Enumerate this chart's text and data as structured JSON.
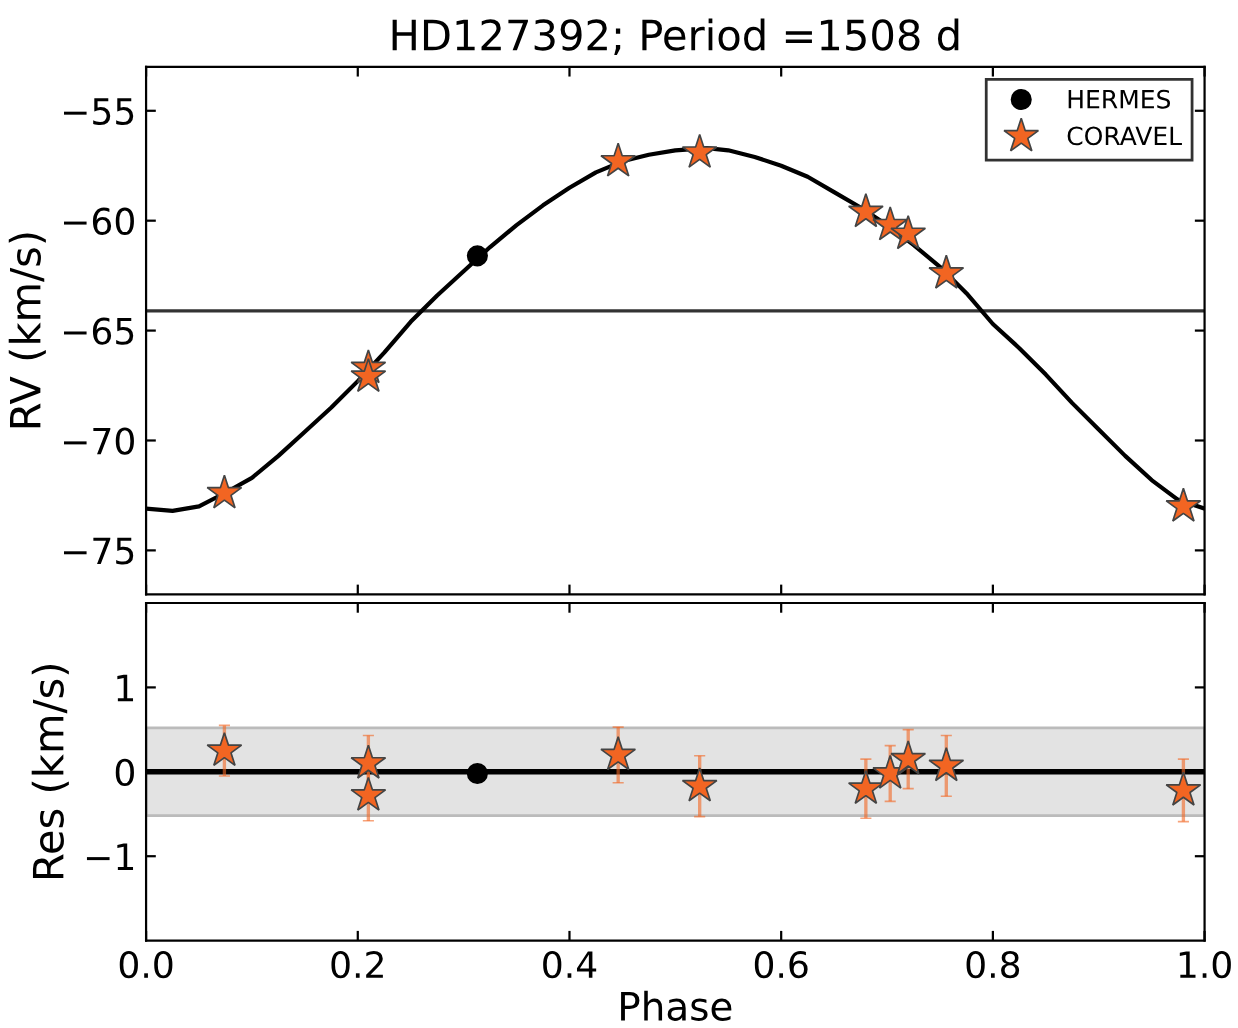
{
  "chart_data": [
    {
      "type": "scatter",
      "title": "HD127392; Period =1508 d",
      "ylabel": "RV (km/s)",
      "xlim": [
        0,
        1
      ],
      "xticks": [
        0,
        0.2,
        0.4,
        0.6,
        0.8,
        1
      ],
      "ylim": [
        -77,
        -53
      ],
      "yticks": [
        -75,
        -70,
        -65,
        -60,
        -55
      ],
      "tick_labels": "y",
      "legend": "top right",
      "grid": false,
      "series": [
        {
          "type": "line",
          "color": "#000000",
          "marker": "none",
          "x": [
            0,
            0.025,
            0.05,
            0.074,
            0.1,
            0.125,
            0.15,
            0.175,
            0.2,
            0.225,
            0.25,
            0.275,
            0.3,
            0.325,
            0.35,
            0.375,
            0.4,
            0.425,
            0.45,
            0.475,
            0.5,
            0.53,
            0.55,
            0.575,
            0.6,
            0.625,
            0.65,
            0.675,
            0.7,
            0.725,
            0.75,
            0.775,
            0.8,
            0.825,
            0.85,
            0.875,
            0.9,
            0.925,
            0.95,
            0.975,
            1.0
          ],
          "values": [
            -73.1,
            -73.2,
            -73.0,
            -72.4,
            -71.7,
            -70.7,
            -69.6,
            -68.5,
            -67.3,
            -66.0,
            -64.6,
            -63.4,
            -62.3,
            -61.2,
            -60.2,
            -59.3,
            -58.5,
            -57.8,
            -57.3,
            -57.0,
            -56.8,
            -56.7,
            -56.8,
            -57.1,
            -57.5,
            -58.0,
            -58.7,
            -59.4,
            -60.2,
            -61.1,
            -62.1,
            -63.3,
            -64.7,
            -65.8,
            -67.0,
            -68.3,
            -69.5,
            -70.7,
            -71.8,
            -72.7,
            -73.1
          ]
        },
        {
          "name": "HERMES",
          "color": "#000000",
          "marker": "circle",
          "x": [
            0.313
          ],
          "values": [
            -61.6
          ]
        },
        {
          "name": "CORAVEL",
          "color": "#f26522",
          "marker": "star",
          "x": [
            0.074,
            0.21,
            0.21,
            0.446,
            0.523,
            0.68,
            0.703,
            0.72,
            0.756,
            0.98
          ],
          "values": [
            -72.4,
            -66.7,
            -67.1,
            -57.3,
            -56.9,
            -59.6,
            -60.2,
            -60.6,
            -62.4,
            -73.0
          ]
        }
      ],
      "ref_lines": [
        {
          "axis": "y",
          "value": -64.1,
          "color": "#333333"
        }
      ]
    },
    {
      "type": "scatter",
      "xlabel": "Phase",
      "ylabel": "Res (km/s)",
      "xlim": [
        0,
        1
      ],
      "xticks": [
        {
          "value": 0,
          "label": "0.0"
        },
        0.2,
        0.4,
        0.6,
        0.8,
        {
          "value": 1,
          "label": "1.0"
        }
      ],
      "ylim": [
        -2,
        2
      ],
      "yticks": [
        -1,
        0,
        1
      ],
      "grid": false,
      "series": [
        {
          "color": "#000000",
          "marker": "circle",
          "x": [
            0.313
          ],
          "values": [
            -0.02
          ]
        },
        {
          "color": "#f26522",
          "marker": "star",
          "x": [
            0.074,
            0.21,
            0.21,
            0.446,
            0.523,
            0.68,
            0.703,
            0.72,
            0.756,
            0.98
          ],
          "values": [
            0.25,
            0.1,
            -0.28,
            0.2,
            -0.17,
            -0.2,
            -0.02,
            0.15,
            0.07,
            -0.22
          ],
          "errors": [
            0.3,
            0.33,
            0.3,
            0.33,
            0.36,
            0.35,
            0.33,
            0.35,
            0.36,
            0.37
          ]
        }
      ],
      "ref_lines": [
        {
          "axis": "y",
          "value": 0,
          "color": "#000000"
        }
      ],
      "bands": [
        {
          "axis": "y",
          "from": -0.52,
          "to": 0.52,
          "color": "#e3e3e3"
        }
      ]
    }
  ]
}
